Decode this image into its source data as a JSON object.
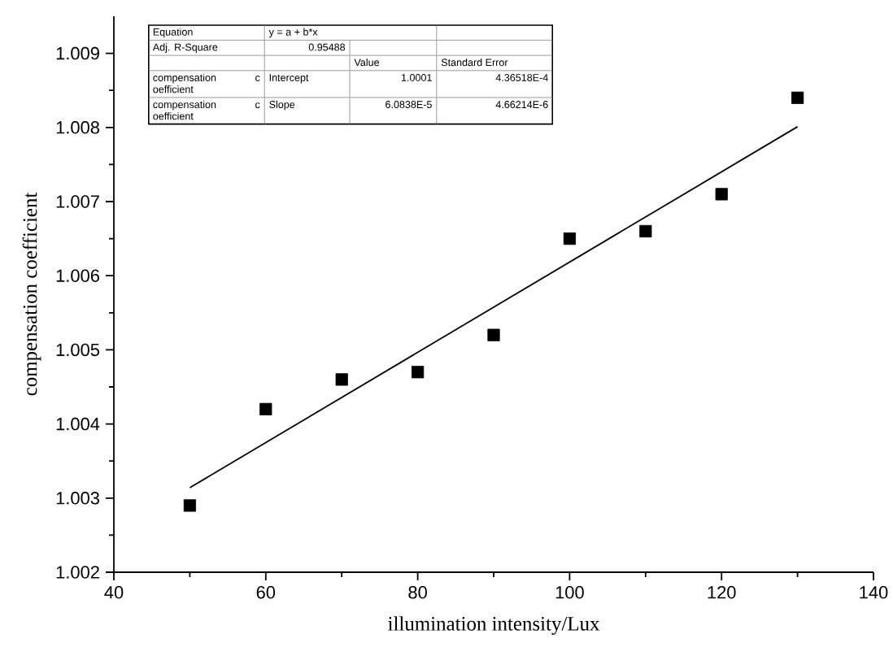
{
  "chart_data": {
    "type": "scatter",
    "xlabel": "illumination  intensity/Lux",
    "ylabel": "compensation  coefficient",
    "xlim": [
      40,
      140
    ],
    "xticks": [
      40,
      60,
      80,
      100,
      120,
      140
    ],
    "ylim": [
      1.002,
      1.0095
    ],
    "yticks": [
      1.002,
      1.003,
      1.004,
      1.005,
      1.006,
      1.007,
      1.008,
      1.009
    ],
    "grid": false,
    "series": [
      {
        "marker": "square",
        "color": "#000000",
        "x": [
          50,
          60,
          70,
          80,
          90,
          100,
          110,
          120,
          130
        ],
        "values": [
          1.0029,
          1.0042,
          1.0046,
          1.0047,
          1.0052,
          1.0065,
          1.0066,
          1.0071,
          1.0084
        ]
      },
      {
        "type": "line",
        "marker": "none",
        "line_style": "solid",
        "color": "#000000",
        "x": [
          50,
          130
        ],
        "values": [
          1.00314,
          1.00801
        ]
      }
    ],
    "annotations": [
      "Equation",
      "y = a + b*x",
      "Adj. R-Square",
      "0.95488",
      "Value",
      "Standard Error",
      "compensation c oefficient",
      "Intercept",
      "1.0001",
      "4.36518E-4",
      "compensation c oefficient",
      "Slope",
      "6.0838E-5",
      "4.66214E-6"
    ]
  }
}
